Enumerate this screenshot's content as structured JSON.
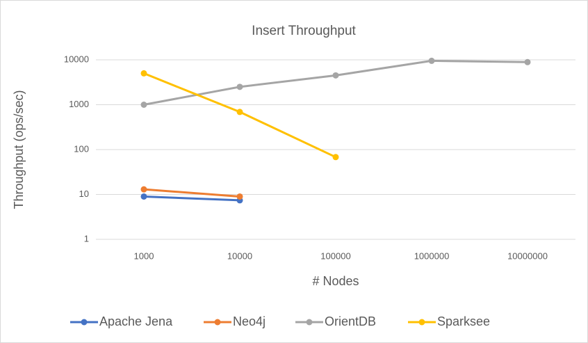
{
  "chart_data": {
    "type": "line",
    "title": "Insert Throughput",
    "x_label": "# Nodes",
    "y_label": "Throughput (ops/sec)",
    "categories": [
      "1000",
      "10000",
      "100000",
      "1000000",
      "10000000"
    ],
    "series": [
      {
        "name": "Apache Jena",
        "color": "#4472c4",
        "values": [
          9,
          7.4,
          null,
          null,
          null
        ]
      },
      {
        "name": "Neo4j",
        "color": "#ed7d31",
        "values": [
          13,
          9,
          null,
          null,
          null
        ]
      },
      {
        "name": "OrientDB",
        "color": "#a5a5a5",
        "values": [
          1000,
          2500,
          4500,
          9500,
          8900
        ]
      },
      {
        "name": "Sparksee",
        "color": "#ffc000",
        "values": [
          5000,
          690,
          68,
          null,
          null
        ]
      }
    ],
    "ylim": [
      1,
      10000
    ],
    "yticks": [
      1,
      10,
      100,
      1000,
      10000
    ],
    "log_y": true,
    "grid": true,
    "legend": "bottom"
  }
}
